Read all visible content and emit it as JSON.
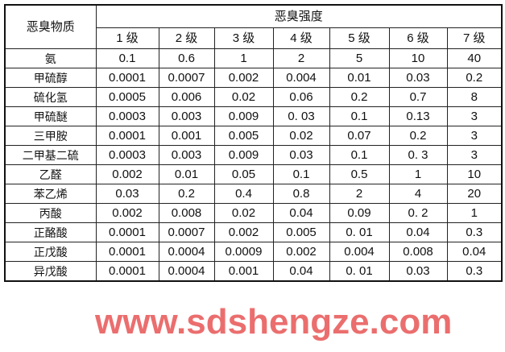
{
  "header": {
    "substance_label": "恶臭物质",
    "intensity_label": "恶臭强度",
    "grades": [
      "1 级",
      "2 级",
      "3 级",
      "4 级",
      "5 级",
      "6 级",
      "7 级"
    ]
  },
  "rows": [
    {
      "name": "氨",
      "values": [
        "0.1",
        "0.6",
        "1",
        "2",
        "5",
        "10",
        "40"
      ]
    },
    {
      "name": "甲硫醇",
      "values": [
        "0.0001",
        "0.0007",
        "0.002",
        "0.004",
        "0.01",
        "0.03",
        "0.2"
      ]
    },
    {
      "name": "硫化氢",
      "values": [
        "0.0005",
        "0.006",
        "0.02",
        "0.06",
        "0.2",
        "0.7",
        "8"
      ]
    },
    {
      "name": "甲硫醚",
      "values": [
        "0.0003",
        "0.003",
        "0.009",
        "0. 03",
        "0.1",
        "0.13",
        "3"
      ]
    },
    {
      "name": "三甲胺",
      "values": [
        "0.0001",
        "0.001",
        "0.005",
        "0.02",
        "0.07",
        "0.2",
        "3"
      ]
    },
    {
      "name": "二甲基二硫",
      "values": [
        "0.0003",
        "0.003",
        "0.009",
        "0.03",
        "0.1",
        "0. 3",
        "3"
      ]
    },
    {
      "name": "乙醛",
      "values": [
        "0.002",
        "0.01",
        "0.05",
        "0.1",
        "0.5",
        "1",
        "10"
      ]
    },
    {
      "name": "苯乙烯",
      "values": [
        "0.03",
        "0.2",
        "0.4",
        "0.8",
        "2",
        "4",
        "20"
      ]
    },
    {
      "name": "丙酸",
      "values": [
        "0.002",
        "0.008",
        "0.02",
        "0.04",
        "0.09",
        "0. 2",
        "1"
      ]
    },
    {
      "name": "正酪酸",
      "values": [
        "0.0001",
        "0.0007",
        "0.002",
        "0.005",
        "0. 01",
        "0.04",
        "0.3"
      ]
    },
    {
      "name": "正戊酸",
      "values": [
        "0.0001",
        "0.0004",
        "0.0009",
        "0.002",
        "0.004",
        "0.008",
        "0.04"
      ]
    },
    {
      "name": "异戊酸",
      "values": [
        "0.0001",
        "0.0004",
        "0.001",
        "0.04",
        "0. 01",
        "0.03",
        "0.3"
      ]
    }
  ],
  "watermark": "www.sdshengze.com",
  "colors": {
    "watermark": "#eb6e6e",
    "border": "#222222"
  }
}
